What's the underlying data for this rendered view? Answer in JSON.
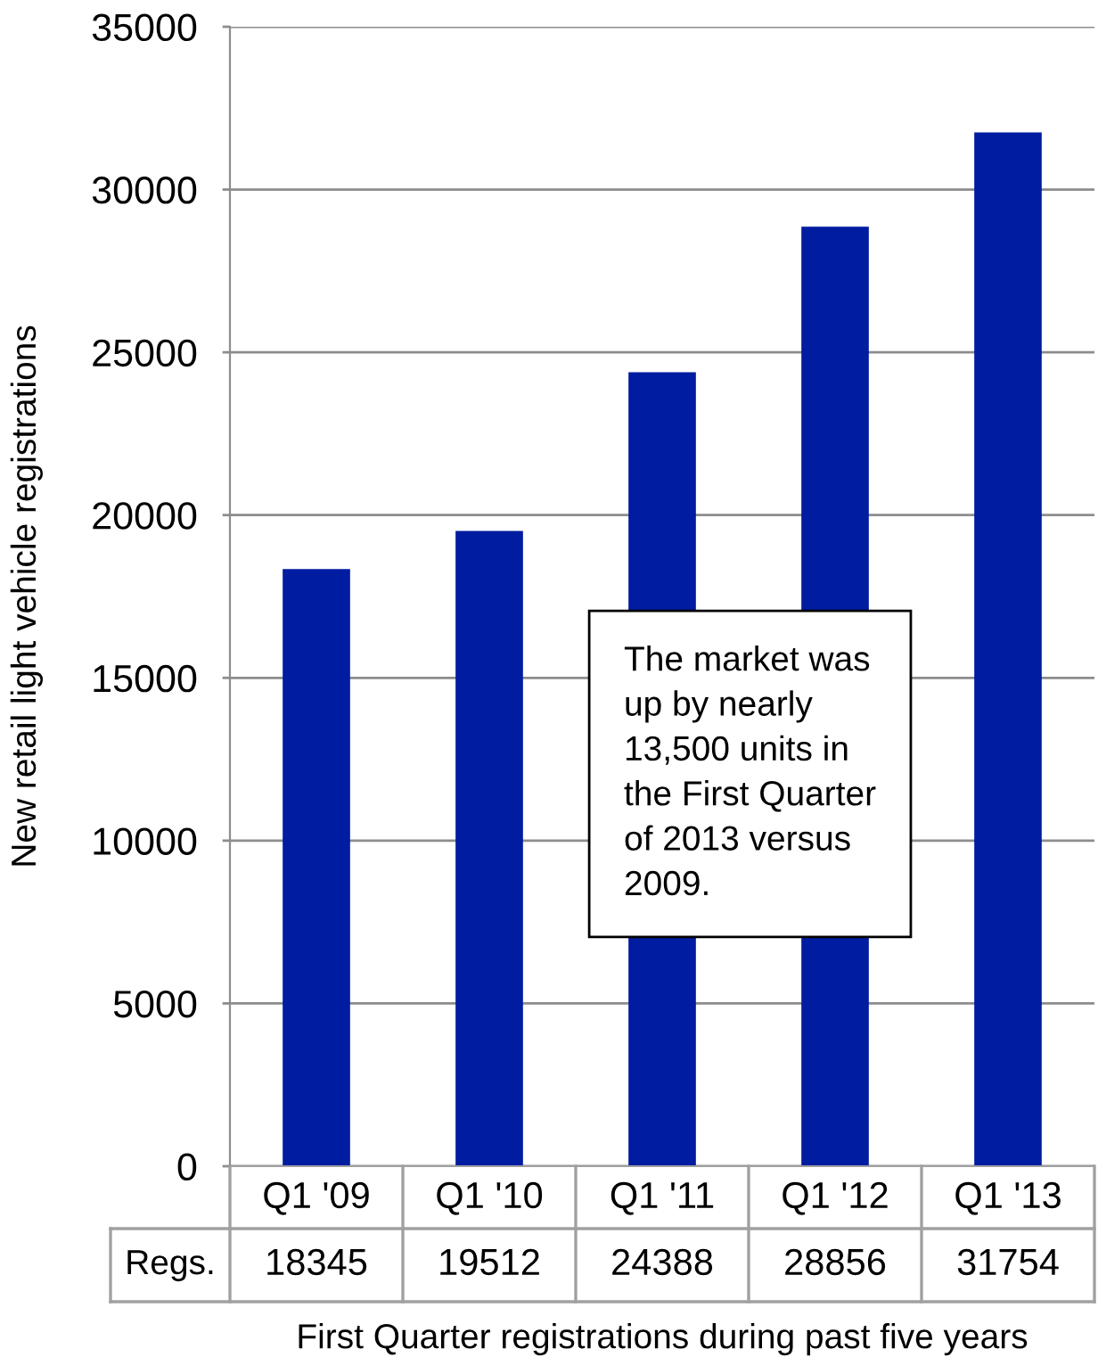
{
  "chart_data": {
    "type": "bar",
    "xlabel": "First Quarter registrations during past five years",
    "ylabel": "New retail light vehicle registrations",
    "categories": [
      "Q1 '09",
      "Q1 '10",
      "Q1 '11",
      "Q1 '12",
      "Q1 '13"
    ],
    "series": [
      {
        "name": "Regs.",
        "color": "#001ca0",
        "values": [
          18345,
          19512,
          24388,
          28856,
          31754
        ]
      }
    ],
    "ylim": [
      0,
      35000
    ],
    "yticks": [
      0,
      5000,
      10000,
      15000,
      20000,
      25000,
      30000,
      35000
    ],
    "grid": "y",
    "data_labels": true,
    "annotations": [
      "The market was\nup by nearly\n13,500 units in\nthe First Quarter\nof 2013 versus\n2009."
    ]
  }
}
